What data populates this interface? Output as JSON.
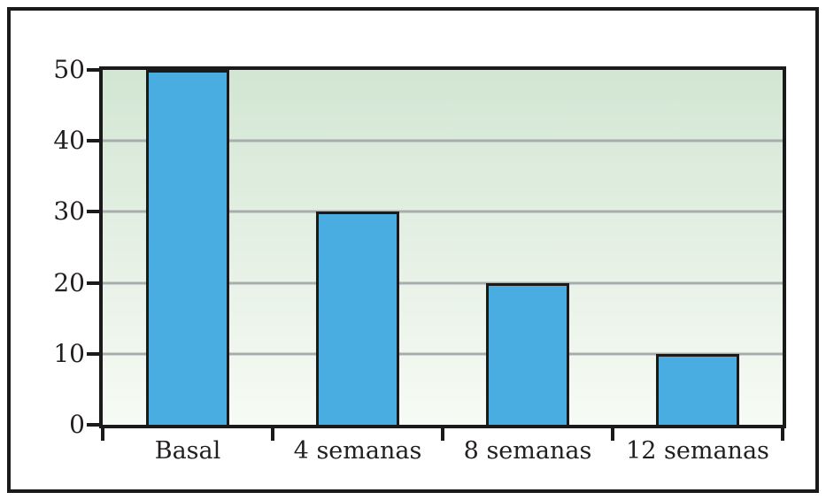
{
  "chart_data": {
    "type": "bar",
    "categories": [
      "Basal",
      "4 semanas",
      "8 semanas",
      "12 semanas"
    ],
    "values": [
      50,
      30,
      20,
      10
    ],
    "title": "",
    "xlabel": "",
    "ylabel": "",
    "ylim": [
      0,
      50
    ],
    "yticks": [
      0,
      10,
      20,
      30,
      40,
      50
    ],
    "grid": true,
    "legend": "none",
    "colors": {
      "bar_fill": "#4aade2",
      "bar_border": "#1a1a1a",
      "gridline": "#a9acae",
      "frame": "#1a1a1a",
      "plot_bg_top": "#d2e6d3",
      "plot_bg_bottom": "#f7fbf5",
      "text": "#231f20"
    }
  }
}
